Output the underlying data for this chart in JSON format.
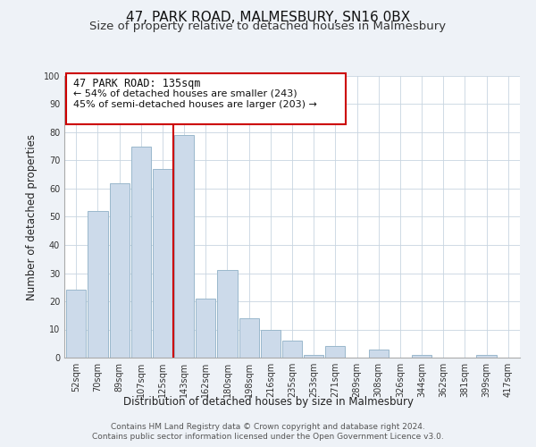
{
  "title": "47, PARK ROAD, MALMESBURY, SN16 0BX",
  "subtitle": "Size of property relative to detached houses in Malmesbury",
  "xlabel": "Distribution of detached houses by size in Malmesbury",
  "ylabel": "Number of detached properties",
  "categories": [
    "52sqm",
    "70sqm",
    "89sqm",
    "107sqm",
    "125sqm",
    "143sqm",
    "162sqm",
    "180sqm",
    "198sqm",
    "216sqm",
    "235sqm",
    "253sqm",
    "271sqm",
    "289sqm",
    "308sqm",
    "326sqm",
    "344sqm",
    "362sqm",
    "381sqm",
    "399sqm",
    "417sqm"
  ],
  "values": [
    24,
    52,
    62,
    75,
    67,
    79,
    21,
    31,
    14,
    10,
    6,
    1,
    4,
    0,
    3,
    0,
    1,
    0,
    0,
    1,
    0
  ],
  "bar_color": "#ccdaea",
  "bar_edge_color": "#9ab8cc",
  "vline_color": "#cc0000",
  "ylim": [
    0,
    100
  ],
  "annotation_title": "47 PARK ROAD: 135sqm",
  "annotation_line1": "← 54% of detached houses are smaller (243)",
  "annotation_line2": "45% of semi-detached houses are larger (203) →",
  "annotation_box_color": "#ffffff",
  "annotation_box_edge": "#cc0000",
  "footer_line1": "Contains HM Land Registry data © Crown copyright and database right 2024.",
  "footer_line2": "Contains public sector information licensed under the Open Government Licence v3.0.",
  "background_color": "#eef2f7",
  "plot_background": "#ffffff",
  "grid_color": "#c8d4e0",
  "title_fontsize": 11,
  "subtitle_fontsize": 9.5,
  "ylabel_fontsize": 8.5,
  "xlabel_fontsize": 8.5,
  "tick_fontsize": 7,
  "footer_fontsize": 6.5
}
